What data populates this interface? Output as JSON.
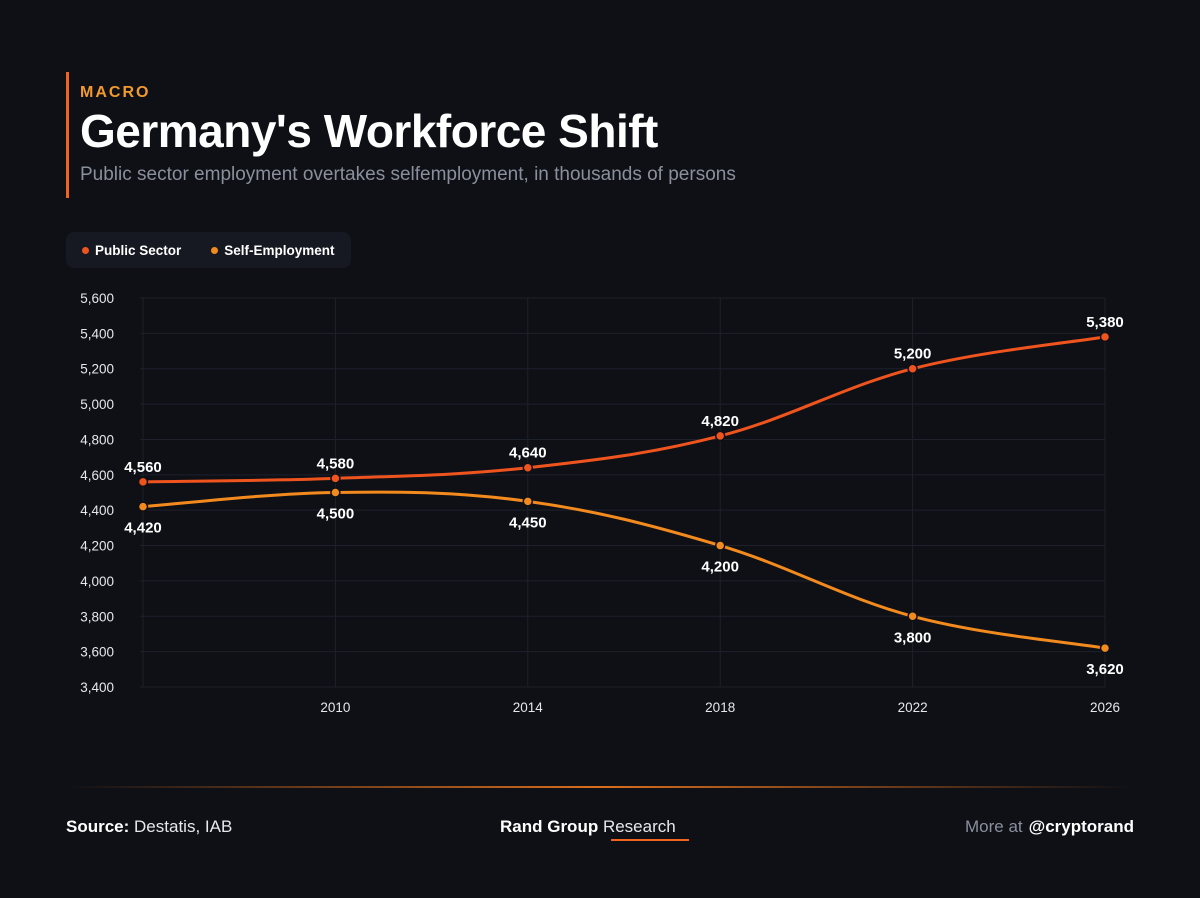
{
  "header": {
    "kicker": "MACRO",
    "title": "Germany's Workforce Shift",
    "subtitle": "Public sector employment overtakes selfemployment, in thousands of persons"
  },
  "colors": {
    "background": "#0e1016",
    "public_sector": "#f0541e",
    "self_employment": "#f28a1e",
    "accent": "#f0641e"
  },
  "chart_data": {
    "type": "line",
    "title": "Germany's Workforce Shift",
    "subtitle": "Public sector employment overtakes selfemployment, in thousands of persons",
    "x": [
      2006,
      2010,
      2014,
      2018,
      2022,
      2026
    ],
    "x_tick_labels": [
      "2010",
      "2014",
      "2018",
      "2022",
      "2026"
    ],
    "x_ticks": [
      2010,
      2014,
      2018,
      2022,
      2026
    ],
    "xlim": [
      2006,
      2026
    ],
    "ylim": [
      3400,
      5600
    ],
    "y_ticks": [
      3400,
      3600,
      3800,
      4000,
      4200,
      4400,
      4600,
      4800,
      5000,
      5200,
      5400,
      5600
    ],
    "y_tick_labels": [
      "3,400",
      "3,600",
      "3,800",
      "4,000",
      "4,200",
      "4,400",
      "4,600",
      "4,800",
      "5,000",
      "5,200",
      "5,400",
      "5,600"
    ],
    "grid": true,
    "legend_position": "top-left",
    "series": [
      {
        "name": "Public Sector",
        "color": "#f0541e",
        "values": [
          4560,
          4580,
          4640,
          4820,
          5200,
          5380
        ],
        "labels": [
          "4,560",
          "4,580",
          "4,640",
          "4,820",
          "5,200",
          "5,380"
        ],
        "label_position": "above"
      },
      {
        "name": "Self-Employment",
        "color": "#f28a1e",
        "values": [
          4420,
          4500,
          4450,
          4200,
          3800,
          3620
        ],
        "labels": [
          "4,420",
          "4,500",
          "4,450",
          "4,200",
          "3,800",
          "3,620"
        ],
        "label_position": "below"
      }
    ]
  },
  "footer": {
    "source_label": "Source:",
    "source_text": "Destatis, IAB",
    "brand_strong": "Rand Group",
    "brand_light": "Research",
    "more_label": "More at",
    "handle": "@cryptorand"
  }
}
